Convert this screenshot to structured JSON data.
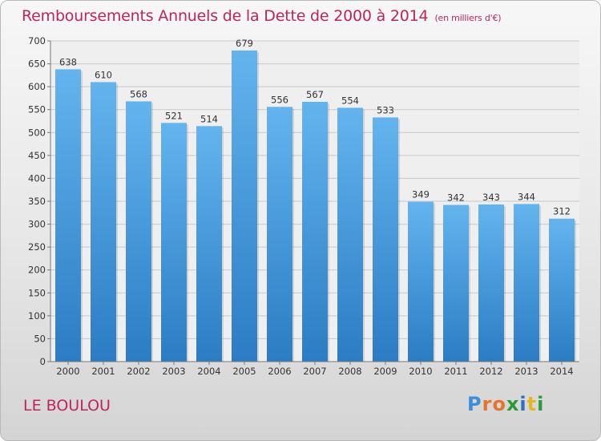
{
  "header": {
    "title": "Remboursements Annuels de la Dette de 2000 à 2014",
    "unit": "(en milliers d'€)"
  },
  "footer": {
    "city": "LE BOULOU",
    "brand": "Proxiti"
  },
  "colors": {
    "title": "#c0245c",
    "bar_top": "#63b4ee",
    "bar_bottom": "#2b7cc4"
  },
  "chart_data": {
    "type": "bar",
    "categories": [
      "2000",
      "2001",
      "2002",
      "2003",
      "2004",
      "2005",
      "2006",
      "2007",
      "2008",
      "2009",
      "2010",
      "2011",
      "2012",
      "2013",
      "2014"
    ],
    "values": [
      638,
      610,
      568,
      521,
      514,
      679,
      556,
      567,
      554,
      533,
      349,
      342,
      343,
      344,
      312
    ],
    "ylim": [
      0,
      700
    ],
    "yticks": [
      0,
      50,
      100,
      150,
      200,
      250,
      300,
      350,
      400,
      450,
      500,
      550,
      600,
      650,
      700
    ],
    "grid": true,
    "data_labels": true
  }
}
